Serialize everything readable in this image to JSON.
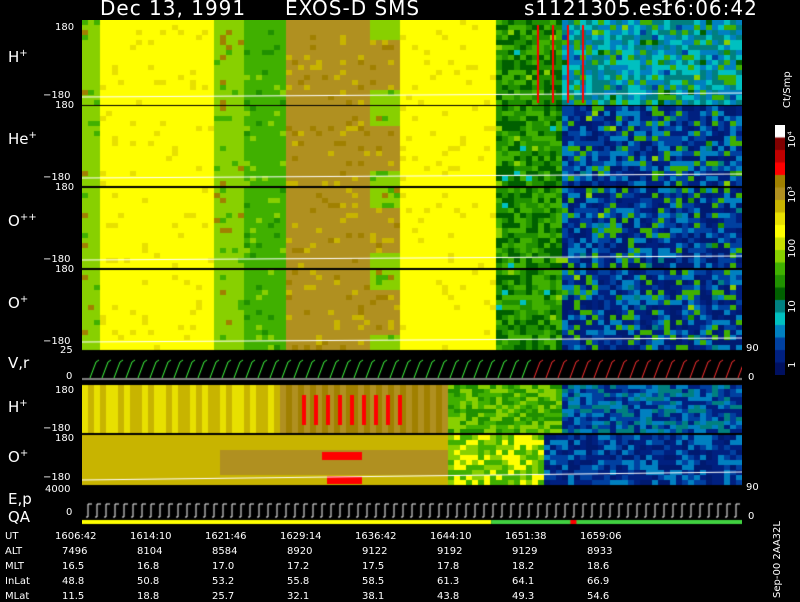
{
  "header": {
    "date": "Dec 13, 1991",
    "instrument": "EXOS-D SMS",
    "file": "s1121305.esr",
    "time": "16:06:42"
  },
  "panels": [
    {
      "label_main": "H",
      "label_sup": "+",
      "tick_top": "180",
      "tick_bottom": "−180"
    },
    {
      "label_main": "He",
      "label_sup": "+",
      "tick_top": "180",
      "tick_bottom": "−180"
    },
    {
      "label_main": "O",
      "label_sup": "++",
      "tick_top": "180",
      "tick_bottom": "−180"
    },
    {
      "label_main": "O",
      "label_sup": "+",
      "tick_top": "180",
      "tick_bottom": "−180"
    },
    {
      "label_main": "V,r",
      "label_sup": "",
      "tick_top": "25",
      "tick_bottom": "0",
      "right_tick_top": "90",
      "right_tick_bottom": "0"
    },
    {
      "label_main": "H",
      "label_sup": "+",
      "tick_top": "180",
      "tick_bottom": "−180"
    },
    {
      "label_main": "O",
      "label_sup": "+",
      "tick_top": "180",
      "tick_bottom": "−180"
    },
    {
      "label_main": "E,p",
      "label_sup": "",
      "tick_top": "4000",
      "tick_bottom": "0",
      "right_tick_top": "90",
      "right_tick_bottom": "0"
    }
  ],
  "qa_label": "QA",
  "colorbar": {
    "unit_label": "Ct/Smp",
    "ticks": [
      "10⁴",
      "10³",
      "100",
      "10",
      "1"
    ],
    "colors": [
      "#ffffff",
      "#800000",
      "#c00000",
      "#ff0000",
      "#a08000",
      "#b09020",
      "#c8b400",
      "#e8e000",
      "#ffff00",
      "#c8e000",
      "#88d000",
      "#40b000",
      "#209000",
      "#006000",
      "#008080",
      "#00c0c0",
      "#0080c0",
      "#0040a0",
      "#002080",
      "#001060"
    ]
  },
  "table": {
    "row_labels": [
      "UT",
      "ALT",
      "MLT",
      "InLat",
      "MLat"
    ],
    "columns": [
      [
        "1606:42",
        "7496",
        "16.5",
        "48.8",
        "11.5"
      ],
      [
        "1614:10",
        "8104",
        "16.8",
        "50.8",
        "18.8"
      ],
      [
        "1621:46",
        "8584",
        "17.0",
        "53.2",
        "25.7"
      ],
      [
        "1629:14",
        "8920",
        "17.2",
        "55.8",
        "32.1"
      ],
      [
        "1636:42",
        "9122",
        "17.5",
        "58.5",
        "38.1"
      ],
      [
        "1644:10",
        "9192",
        "17.8",
        "61.3",
        "43.8"
      ],
      [
        "1651:38",
        "9129",
        "18.2",
        "64.1",
        "49.3"
      ],
      [
        "1659:06",
        "8933",
        "18.6",
        "66.9",
        "54.6"
      ]
    ]
  },
  "footer_note": "Sep-00  2AA32L",
  "chart_data": {
    "type": "heatmap",
    "title": "Dec 13, 1991   EXOS-D SMS",
    "x": [
      "1606:42",
      "1614:10",
      "1621:46",
      "1629:14",
      "1636:42",
      "1644:10",
      "1651:38",
      "1659:06"
    ],
    "ylabel": [
      "H+",
      "He+",
      "O++",
      "O+",
      "V,r",
      "H+",
      "O+",
      "E,p"
    ],
    "ylim": [
      -180,
      180
    ],
    "colorbar_label": "Ct/Smp",
    "colorbar_range": [
      1,
      10000
    ],
    "colorbar_scale": "log"
  }
}
